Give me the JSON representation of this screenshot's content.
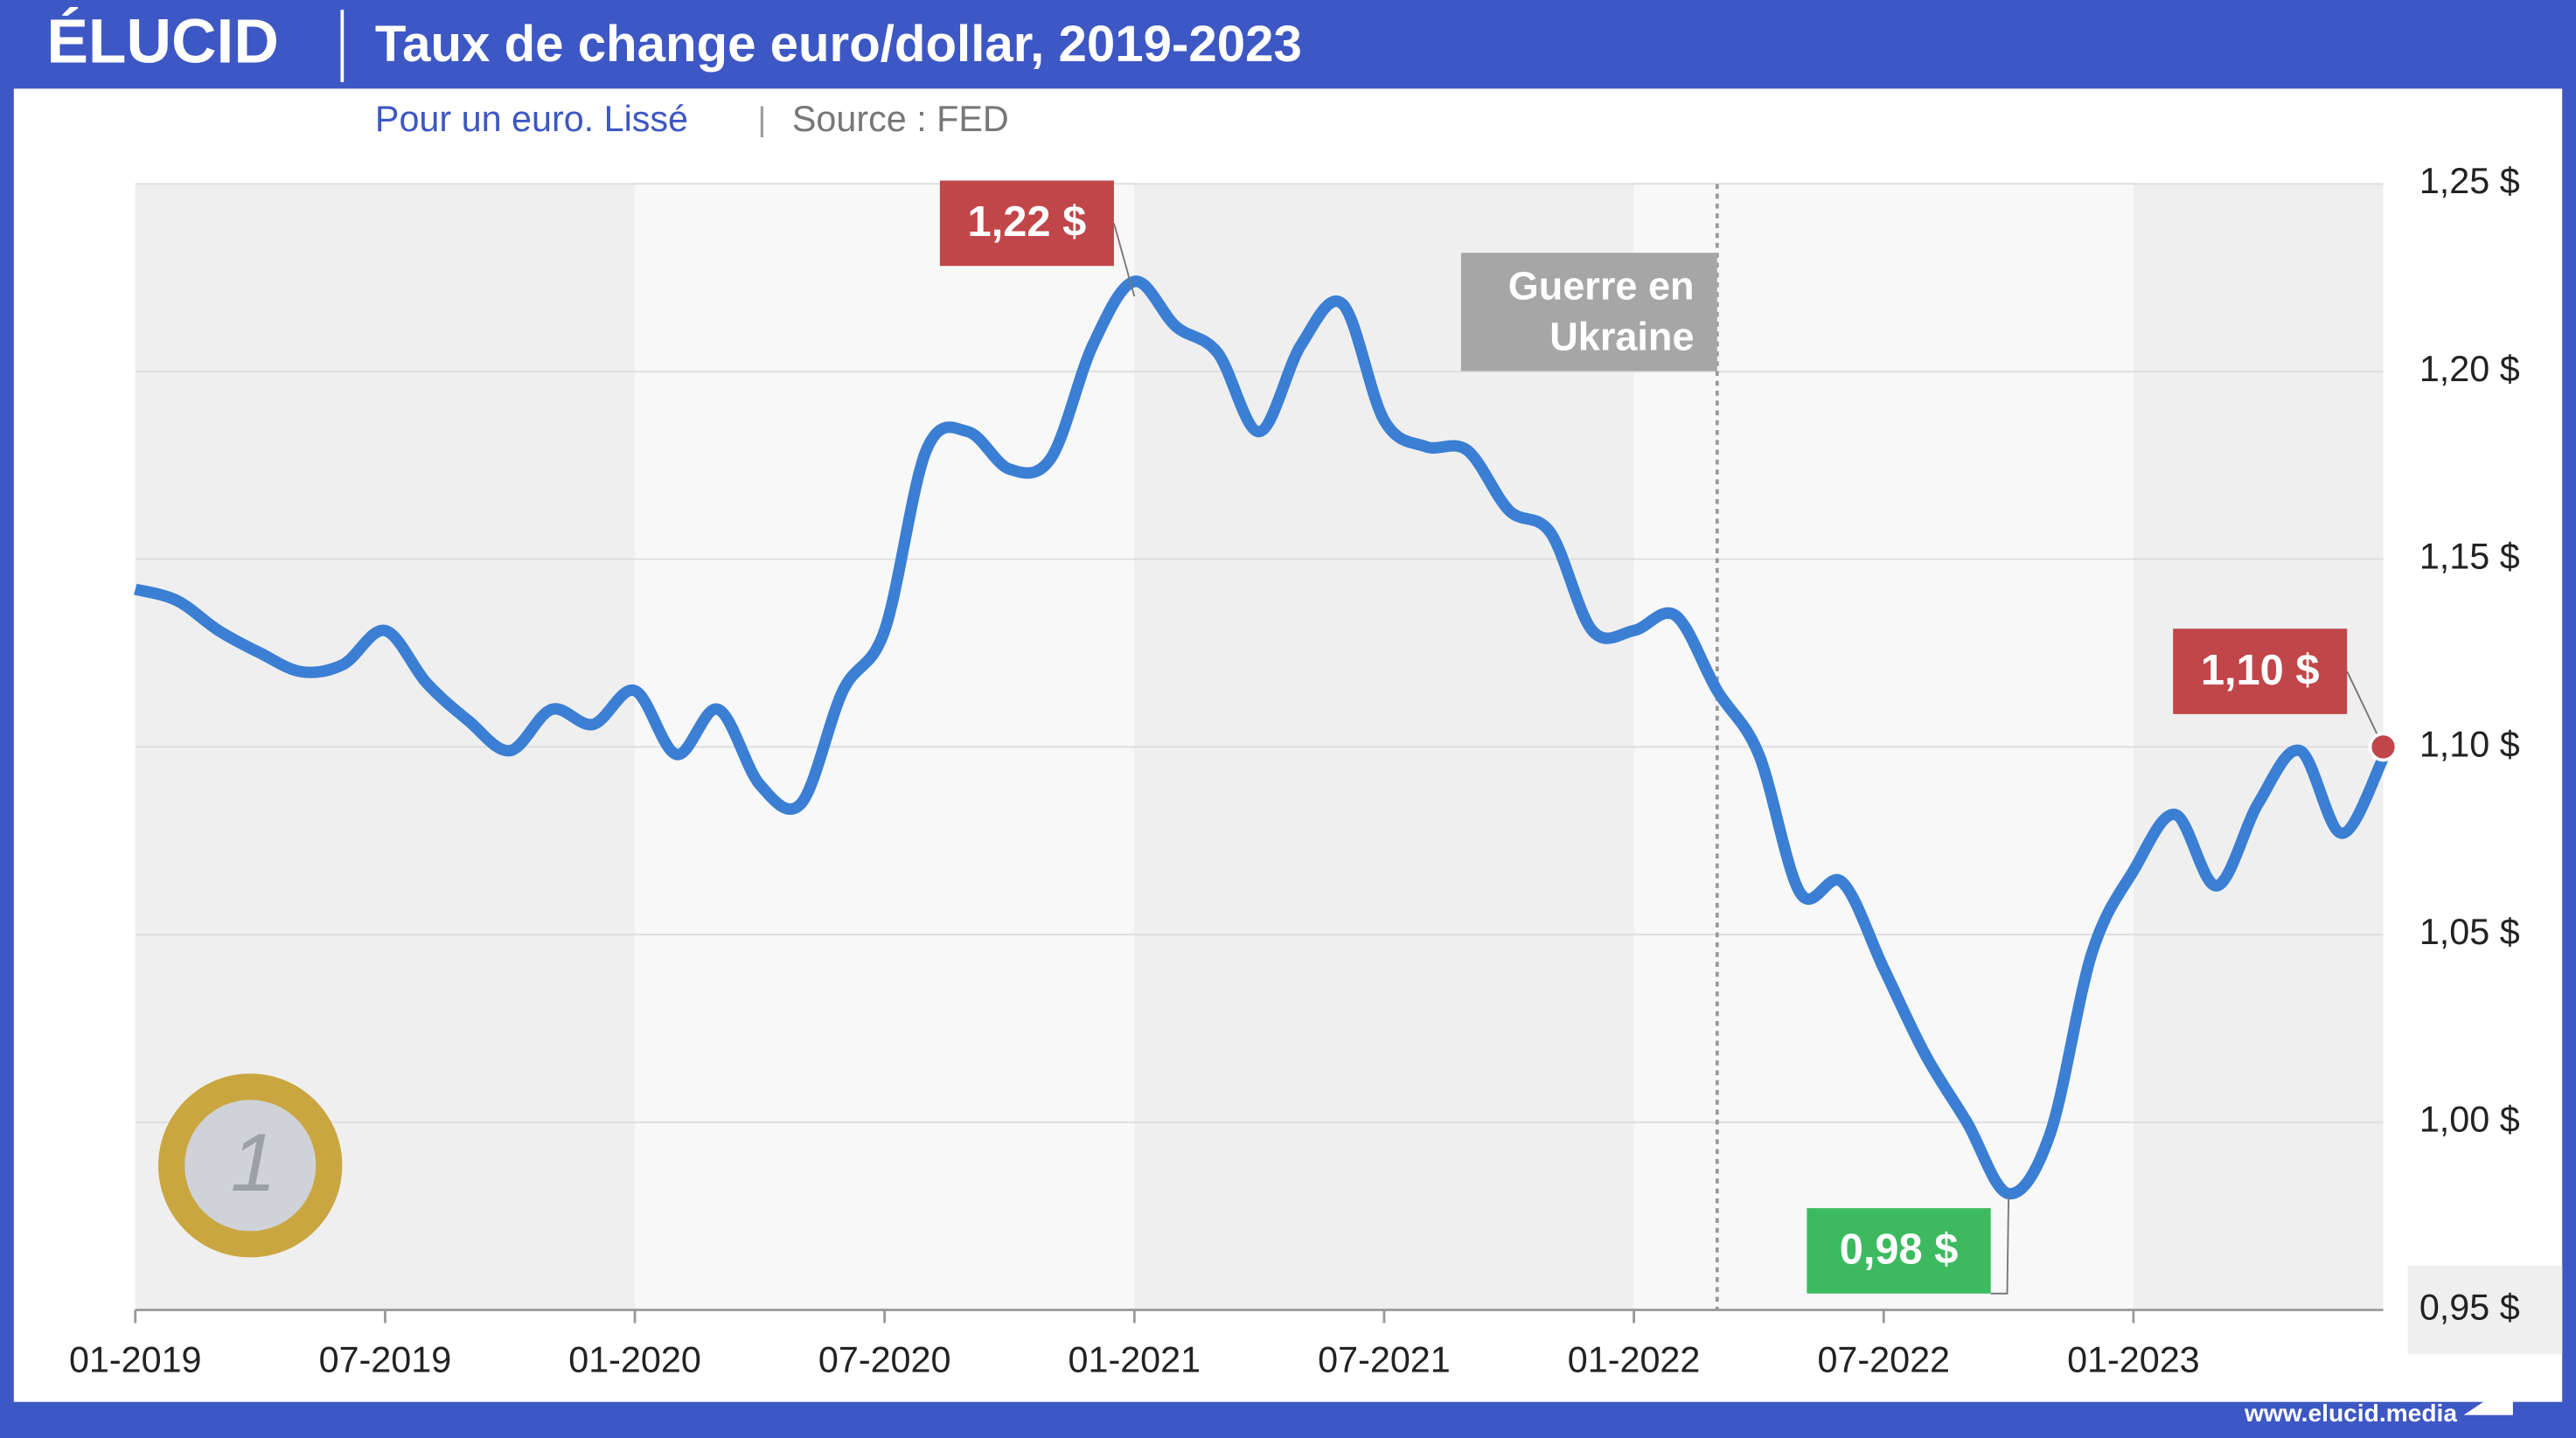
{
  "brand": "ÉLUCID",
  "website": "www.elucid.media",
  "chart_data": {
    "type": "line",
    "title": "Taux de change euro/dollar, 2019-2023",
    "subtitle": "Pour un euro. Lissé",
    "source": "Source : FED",
    "x": [
      "01-2019",
      "02-2019",
      "03-2019",
      "04-2019",
      "05-2019",
      "06-2019",
      "07-2019",
      "08-2019",
      "09-2019",
      "10-2019",
      "11-2019",
      "12-2019",
      "01-2020",
      "02-2020",
      "03-2020",
      "04-2020",
      "05-2020",
      "06-2020",
      "07-2020",
      "08-2020",
      "09-2020",
      "10-2020",
      "11-2020",
      "12-2020",
      "01-2021",
      "02-2021",
      "03-2021",
      "04-2021",
      "05-2021",
      "06-2021",
      "07-2021",
      "08-2021",
      "09-2021",
      "10-2021",
      "11-2021",
      "12-2021",
      "01-2022",
      "02-2022",
      "03-2022",
      "04-2022",
      "05-2022",
      "06-2022",
      "07-2022",
      "08-2022",
      "09-2022",
      "10-2022",
      "11-2022",
      "12-2022",
      "01-2023",
      "02-2023",
      "03-2023",
      "04-2023",
      "05-2023",
      "06-2023",
      "07-2023"
    ],
    "series": [
      {
        "name": "EUR/USD",
        "color": "#3b7fd4",
        "values": [
          1.142,
          1.139,
          1.131,
          1.125,
          1.12,
          1.122,
          1.131,
          1.117,
          1.107,
          1.099,
          1.11,
          1.106,
          1.115,
          1.098,
          1.11,
          1.09,
          1.085,
          1.115,
          1.131,
          1.179,
          1.184,
          1.174,
          1.177,
          1.207,
          1.224,
          1.212,
          1.205,
          1.184,
          1.207,
          1.218,
          1.187,
          1.18,
          1.179,
          1.163,
          1.157,
          1.131,
          1.131,
          1.135,
          1.115,
          1.098,
          1.061,
          1.064,
          1.041,
          1.018,
          1.0,
          0.981,
          0.997,
          1.045,
          1.067,
          1.082,
          1.063,
          1.085,
          1.099,
          1.077,
          1.097
        ]
      }
    ],
    "ylim": [
      0.95,
      1.25
    ],
    "yticks": [
      {
        "value": 0.95,
        "label": "0,95 $"
      },
      {
        "value": 1.0,
        "label": "1,00 $"
      },
      {
        "value": 1.05,
        "label": "1,05 $"
      },
      {
        "value": 1.1,
        "label": "1,10 $"
      },
      {
        "value": 1.15,
        "label": "1,15 $"
      },
      {
        "value": 1.2,
        "label": "1,20 $"
      },
      {
        "value": 1.25,
        "label": "1,25 $"
      }
    ],
    "xticks": [
      "01-2019",
      "07-2019",
      "01-2020",
      "07-2020",
      "01-2021",
      "07-2021",
      "01-2022",
      "07-2022",
      "01-2023"
    ],
    "grid": true,
    "annotations": [
      {
        "x": "01-2021",
        "value": 1.22,
        "label": "1,22 $",
        "color": "#c0464a"
      },
      {
        "x": "10-2022",
        "value": 0.98,
        "label": "0,98 $",
        "color": "#3dba5f"
      },
      {
        "x": "07-2023",
        "value": 1.1,
        "label": "1,10 $",
        "color": "#c0464a"
      }
    ],
    "events": [
      {
        "x": "03-2022",
        "label": [
          "Guerre en",
          "Ukraine"
        ]
      }
    ]
  }
}
